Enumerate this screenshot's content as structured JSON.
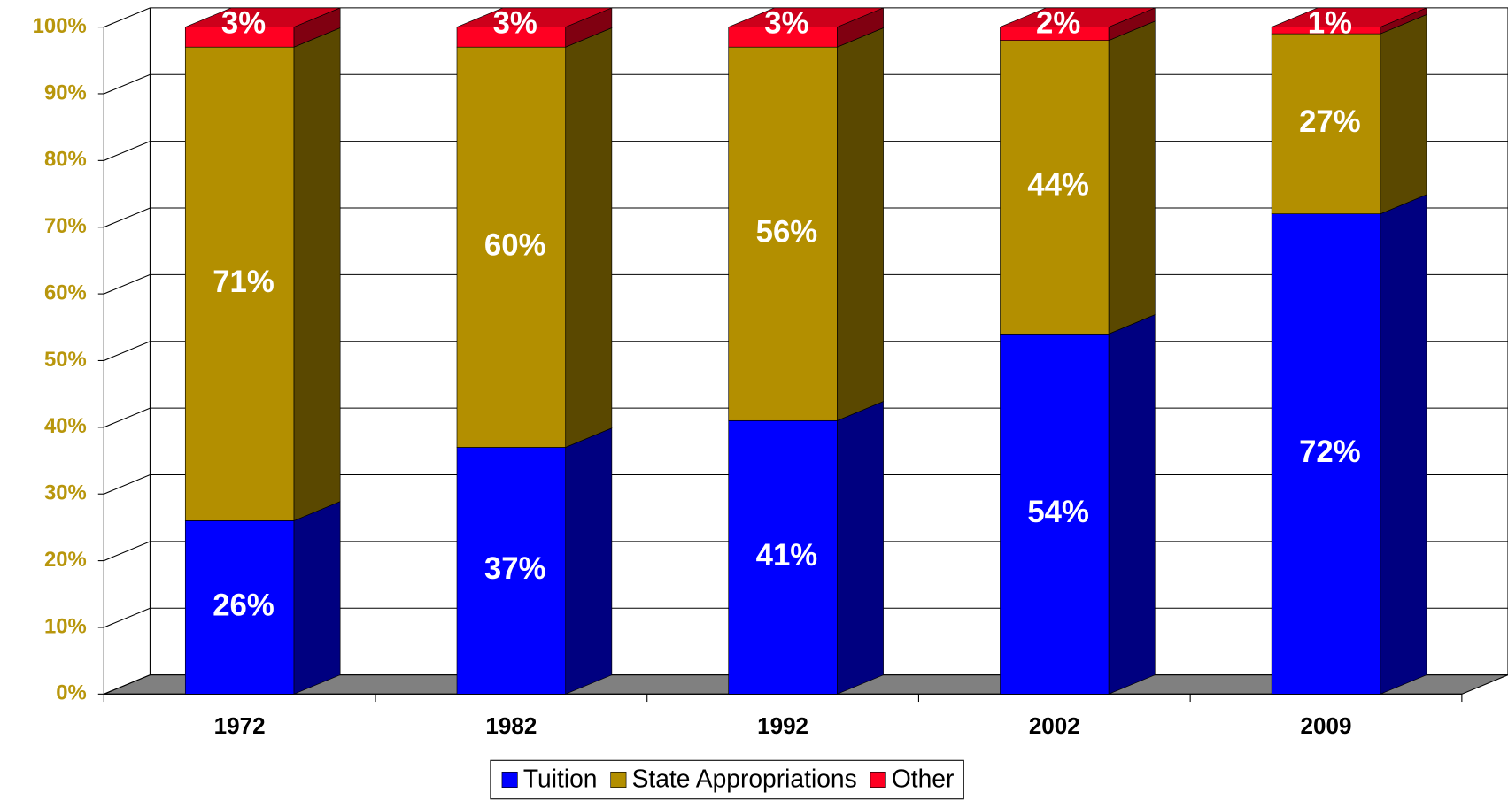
{
  "chart_data": {
    "type": "bar3d_stacked",
    "categories": [
      "1972",
      "1982",
      "1992",
      "2002",
      "2009"
    ],
    "series": [
      {
        "name": "Tuition",
        "color": "#0000ff",
        "values": [
          26,
          37,
          41,
          54,
          72
        ],
        "value_labels": [
          "26%",
          "37%",
          "41%",
          "54%",
          "72%"
        ]
      },
      {
        "name": "State Appropriations",
        "color": "#b38f00",
        "values": [
          71,
          60,
          56,
          44,
          27
        ],
        "value_labels": [
          "71%",
          "60%",
          "56%",
          "44%",
          "27%"
        ]
      },
      {
        "name": "Other",
        "color": "#ff0022",
        "values": [
          3,
          3,
          3,
          2,
          1
        ],
        "value_labels": [
          "3%",
          "3%",
          "3%",
          "2%",
          "1%"
        ]
      }
    ],
    "ylim": [
      0,
      100
    ],
    "yticks": [
      {
        "value": 0,
        "label": "0%"
      },
      {
        "value": 10,
        "label": "10%"
      },
      {
        "value": 20,
        "label": "20%"
      },
      {
        "value": 30,
        "label": "30%"
      },
      {
        "value": 40,
        "label": "40%"
      },
      {
        "value": 50,
        "label": "50%"
      },
      {
        "value": 60,
        "label": "60%"
      },
      {
        "value": 70,
        "label": "70%"
      },
      {
        "value": 80,
        "label": "80%"
      },
      {
        "value": 90,
        "label": "90%"
      },
      {
        "value": 100,
        "label": "100%"
      }
    ],
    "grid": true,
    "legend": "bottom"
  }
}
